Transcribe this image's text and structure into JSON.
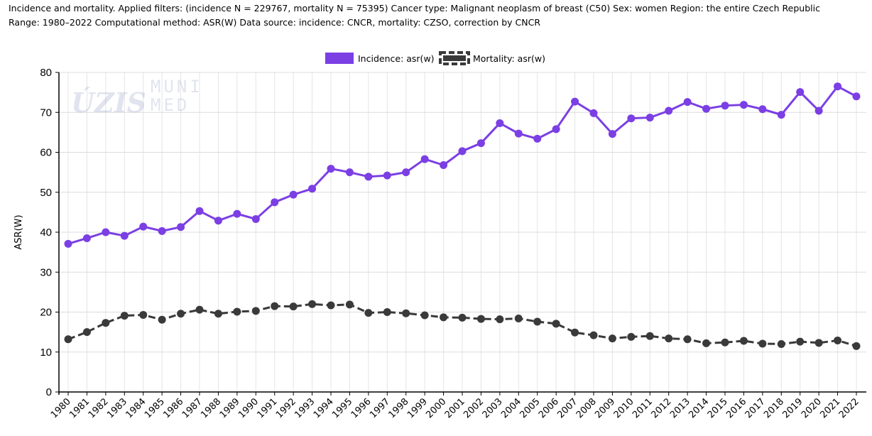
{
  "header": {
    "line1": "Incidence and mortality. Applied filters: (incidence N = 229767, mortality N = 75395) Cancer type: Malignant neoplasm of breast (C50) Sex: women Region: the entire Czech Republic",
    "line2": "Range: 1980–2022 Computational method: ASR(W) Data source: incidence: CNCR, mortality: CZSO, correction by CNCR"
  },
  "watermark": {
    "logo1": "ÚZIS",
    "logo2_line1": "MUNI",
    "logo2_line2": "MED"
  },
  "chart_data": {
    "type": "line",
    "title": "",
    "xlabel": "",
    "ylabel": "ASR(W)",
    "ylim": [
      0,
      80
    ],
    "yticks": [
      0,
      10,
      20,
      30,
      40,
      50,
      60,
      70,
      80
    ],
    "grid": true,
    "legend_position": "top-center",
    "x": [
      "1980",
      "1981",
      "1982",
      "1983",
      "1984",
      "1985",
      "1986",
      "1987",
      "1988",
      "1989",
      "1990",
      "1991",
      "1992",
      "1993",
      "1994",
      "1995",
      "1996",
      "1997",
      "1998",
      "1999",
      "2000",
      "2001",
      "2002",
      "2003",
      "2004",
      "2005",
      "2006",
      "2007",
      "2008",
      "2009",
      "2010",
      "2011",
      "2012",
      "2013",
      "2014",
      "2015",
      "2016",
      "2017",
      "2018",
      "2019",
      "2020",
      "2021",
      "2022"
    ],
    "series": [
      {
        "name": "Incidence: asr(w)",
        "color": "#7b3fe4",
        "style": "solid",
        "values": [
          37.1,
          38.5,
          40.0,
          39.1,
          41.4,
          40.3,
          41.3,
          45.3,
          42.9,
          44.6,
          43.3,
          47.5,
          49.4,
          50.9,
          55.9,
          55.0,
          53.9,
          54.2,
          55.0,
          58.3,
          56.8,
          60.3,
          62.3,
          67.3,
          64.7,
          63.4,
          65.8,
          72.7,
          69.8,
          64.6,
          68.5,
          68.7,
          70.4,
          72.6,
          70.9,
          71.7,
          71.9,
          70.8,
          69.4,
          75.1,
          70.4,
          76.5,
          74.0
        ]
      },
      {
        "name": "Mortality: asr(w)",
        "color": "#3a3a3a",
        "style": "dashed",
        "values": [
          13.2,
          15.0,
          17.3,
          19.1,
          19.3,
          18.1,
          19.6,
          20.6,
          19.6,
          20.1,
          20.3,
          21.5,
          21.4,
          22.0,
          21.7,
          21.9,
          19.8,
          20.0,
          19.7,
          19.2,
          18.7,
          18.6,
          18.3,
          18.2,
          18.4,
          17.6,
          17.1,
          14.9,
          14.2,
          13.4,
          13.8,
          14.0,
          13.4,
          13.2,
          12.2,
          12.4,
          12.8,
          12.1,
          12.0,
          12.6,
          12.3,
          12.9,
          11.5
        ]
      }
    ]
  }
}
